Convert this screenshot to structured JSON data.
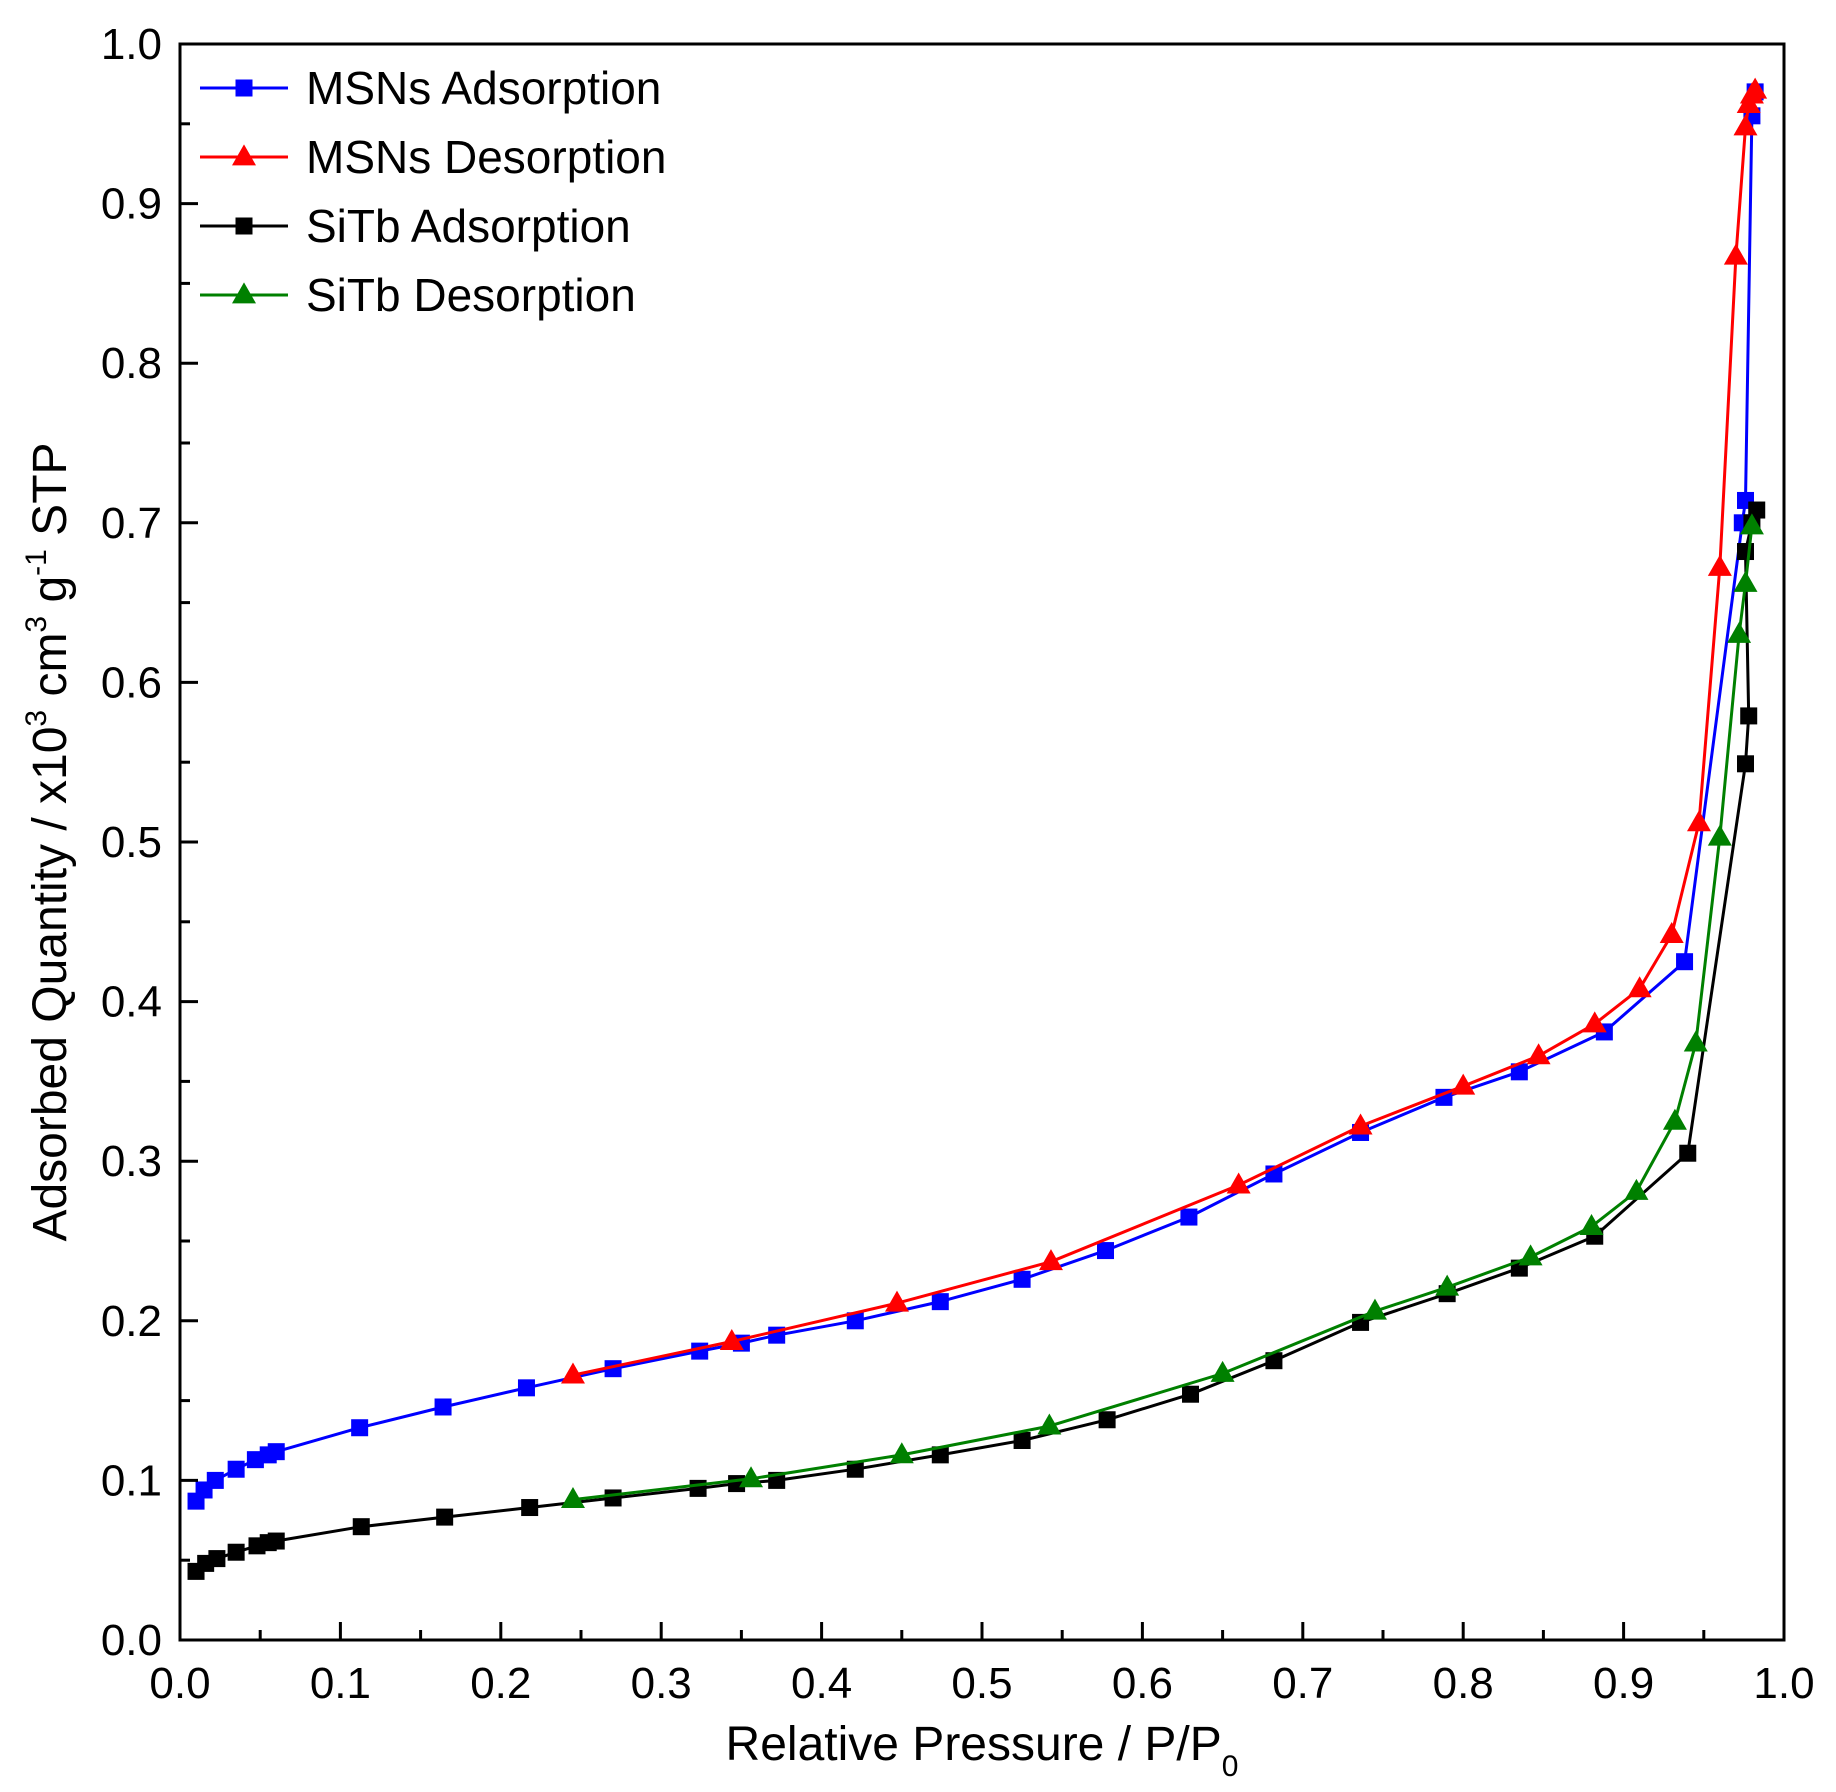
{
  "chart_data": {
    "type": "line",
    "xlabel": "Relative Pressure / P/P",
    "xlabel_subscript": "0",
    "ylabel": {
      "parts": [
        "Adsorbed Quantity / x10",
        "3",
        " cm",
        "3",
        " g",
        "-1",
        " STP"
      ]
    },
    "xlim": [
      0.0,
      1.0
    ],
    "ylim": [
      0.0,
      1.0
    ],
    "x_ticks": [
      0.0,
      0.1,
      0.2,
      0.3,
      0.4,
      0.5,
      0.6,
      0.7,
      0.8,
      0.9,
      1.0
    ],
    "y_ticks": [
      0.0,
      0.1,
      0.2,
      0.3,
      0.4,
      0.5,
      0.6,
      0.7,
      0.8,
      0.9,
      1.0
    ],
    "x_tick_labels": [
      "0.0",
      "0.1",
      "0.2",
      "0.3",
      "0.4",
      "0.5",
      "0.6",
      "0.7",
      "0.8",
      "0.9",
      "1.0"
    ],
    "y_tick_labels": [
      "0.0",
      "0.1",
      "0.2",
      "0.3",
      "0.4",
      "0.5",
      "0.6",
      "0.7",
      "0.8",
      "0.9",
      "1.0"
    ],
    "grid": false,
    "legend_position": "top-left",
    "series": [
      {
        "name": "MSNs Adsorption",
        "color": "#0000ff",
        "marker": "square",
        "x": [
          0.01,
          0.015,
          0.022,
          0.035,
          0.047,
          0.055,
          0.06,
          0.112,
          0.164,
          0.216,
          0.27,
          0.324,
          0.35,
          0.372,
          0.421,
          0.474,
          0.525,
          0.577,
          0.629,
          0.682,
          0.736,
          0.788,
          0.835,
          0.888,
          0.938,
          0.974,
          0.976,
          0.98,
          0.982
        ],
        "y": [
          0.087,
          0.094,
          0.1,
          0.107,
          0.113,
          0.116,
          0.118,
          0.133,
          0.146,
          0.158,
          0.17,
          0.181,
          0.186,
          0.191,
          0.2,
          0.212,
          0.226,
          0.244,
          0.265,
          0.292,
          0.318,
          0.34,
          0.356,
          0.381,
          0.425,
          0.7,
          0.714,
          0.955,
          0.97
        ]
      },
      {
        "name": "MSNs Desorption",
        "color": "#ff0000",
        "marker": "triangle",
        "x": [
          0.982,
          0.98,
          0.978,
          0.976,
          0.97,
          0.96,
          0.947,
          0.93,
          0.91,
          0.882,
          0.847,
          0.8,
          0.736,
          0.66,
          0.543,
          0.447,
          0.344,
          0.245
        ],
        "y": [
          0.971,
          0.968,
          0.962,
          0.948,
          0.867,
          0.672,
          0.512,
          0.442,
          0.408,
          0.386,
          0.366,
          0.347,
          0.322,
          0.285,
          0.237,
          0.211,
          0.187,
          0.166
        ]
      },
      {
        "name": "SiTb Adsorption",
        "color": "#000000",
        "marker": "square",
        "x": [
          0.01,
          0.016,
          0.023,
          0.035,
          0.048,
          0.055,
          0.06,
          0.113,
          0.165,
          0.218,
          0.27,
          0.323,
          0.347,
          0.372,
          0.421,
          0.474,
          0.525,
          0.578,
          0.63,
          0.682,
          0.736,
          0.79,
          0.835,
          0.882,
          0.94,
          0.976,
          0.978,
          0.976,
          0.98,
          0.983
        ],
        "y": [
          0.043,
          0.048,
          0.051,
          0.055,
          0.059,
          0.061,
          0.062,
          0.071,
          0.077,
          0.083,
          0.089,
          0.095,
          0.098,
          0.1,
          0.107,
          0.116,
          0.125,
          0.138,
          0.154,
          0.175,
          0.199,
          0.217,
          0.233,
          0.253,
          0.305,
          0.549,
          0.579,
          0.682,
          0.7,
          0.708
        ]
      },
      {
        "name": "SiTb Desorption",
        "color": "#008000",
        "marker": "triangle",
        "x": [
          0.98,
          0.976,
          0.972,
          0.96,
          0.945,
          0.932,
          0.908,
          0.88,
          0.842,
          0.79,
          0.745,
          0.65,
          0.542,
          0.45,
          0.356,
          0.245
        ],
        "y": [
          0.698,
          0.662,
          0.63,
          0.503,
          0.374,
          0.325,
          0.281,
          0.259,
          0.24,
          0.221,
          0.206,
          0.167,
          0.134,
          0.116,
          0.101,
          0.088
        ]
      }
    ]
  }
}
